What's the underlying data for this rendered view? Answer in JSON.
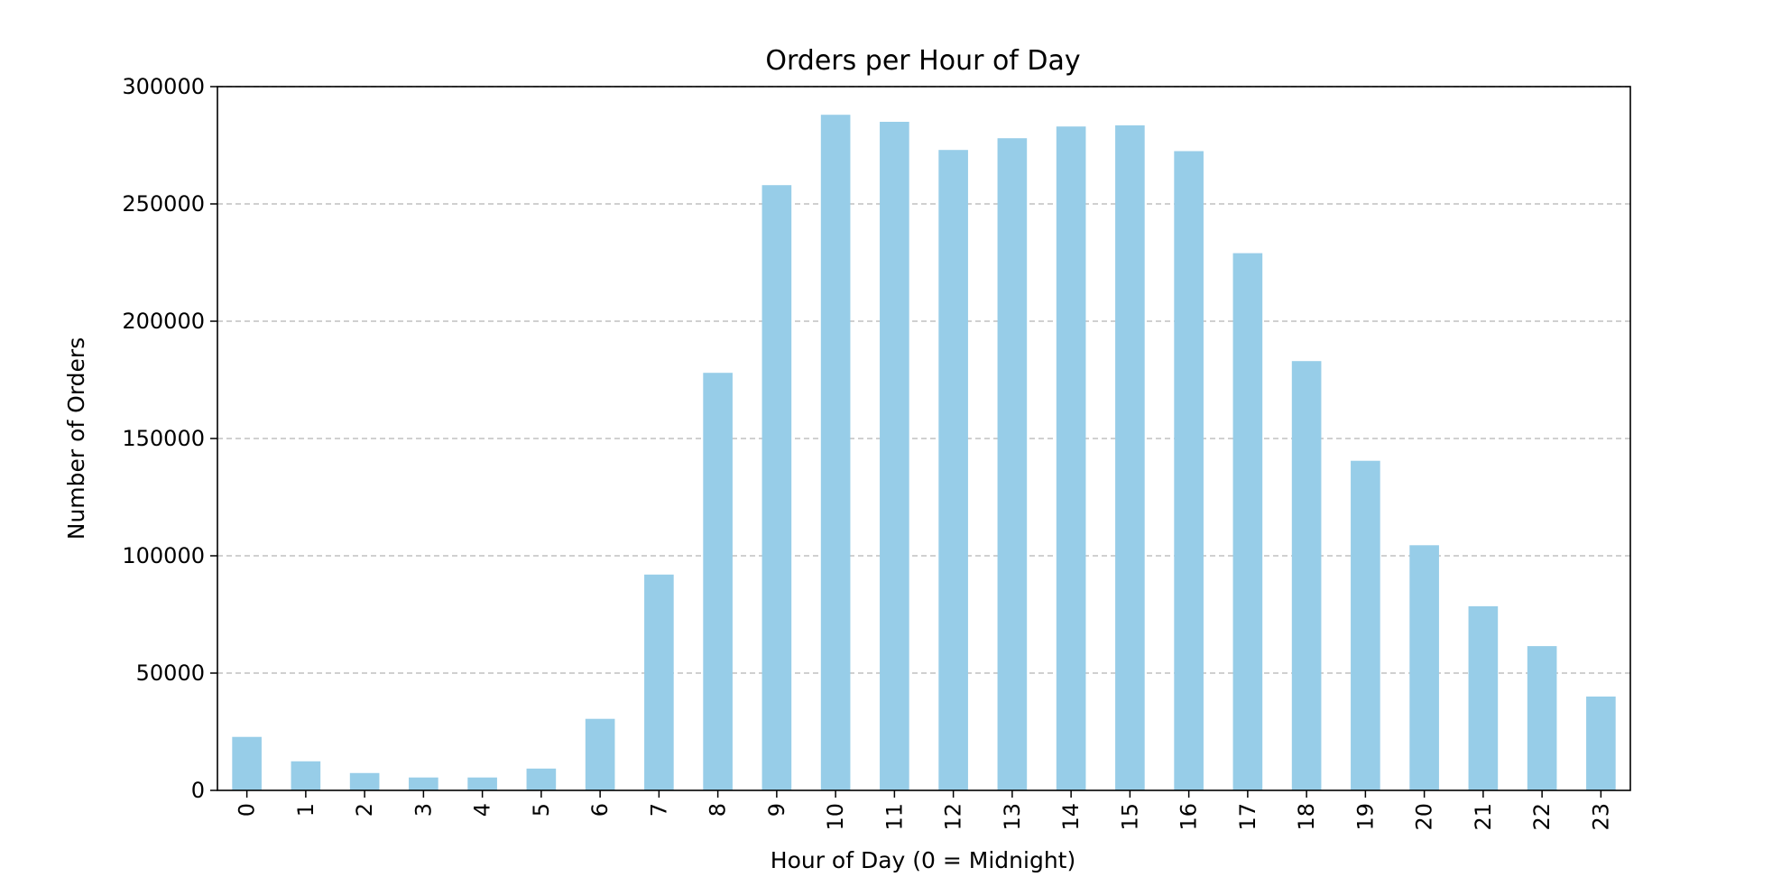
{
  "chart_data": {
    "type": "bar",
    "title": "Orders per Hour of Day",
    "xlabel": "Hour of Day (0 = Midnight)",
    "ylabel": "Number of Orders",
    "categories": [
      "0",
      "1",
      "2",
      "3",
      "4",
      "5",
      "6",
      "7",
      "8",
      "9",
      "10",
      "11",
      "12",
      "13",
      "14",
      "15",
      "16",
      "17",
      "18",
      "19",
      "20",
      "21",
      "22",
      "23"
    ],
    "values": [
      22800,
      12400,
      7400,
      5500,
      5500,
      9300,
      30500,
      92000,
      178000,
      258000,
      288000,
      285000,
      273000,
      278000,
      283000,
      283500,
      272500,
      229000,
      183000,
      140500,
      104500,
      78500,
      61500,
      40000
    ],
    "ylim": [
      0,
      300000
    ],
    "yticks": [
      0,
      50000,
      100000,
      150000,
      200000,
      250000,
      300000
    ],
    "ytick_labels": [
      "0",
      "50000",
      "100000",
      "150000",
      "200000",
      "250000",
      "300000"
    ],
    "grid": "y-dashed",
    "colors": {
      "bar": "#97cde8",
      "grid": "#c0c0c0",
      "axis": "#000000"
    }
  }
}
